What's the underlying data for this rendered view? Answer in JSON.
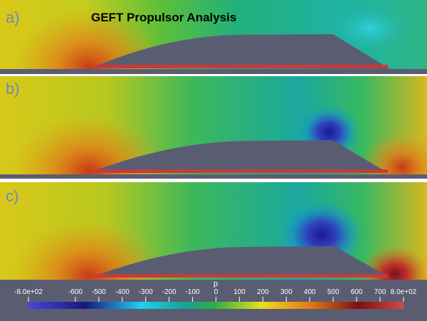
{
  "title": "GEFT Propulsor Analysis",
  "panels": [
    {
      "label": "a)"
    },
    {
      "label": "b)"
    },
    {
      "label": "c)"
    }
  ],
  "colorbar": {
    "title": "p",
    "ticks": [
      {
        "value": -800,
        "label": "-8.0e+02"
      },
      -600,
      -500,
      -400,
      -300,
      -200,
      -100,
      0,
      100,
      200,
      300,
      400,
      500,
      600,
      700,
      {
        "value": 800,
        "label": "8.0e+02"
      }
    ]
  }
}
